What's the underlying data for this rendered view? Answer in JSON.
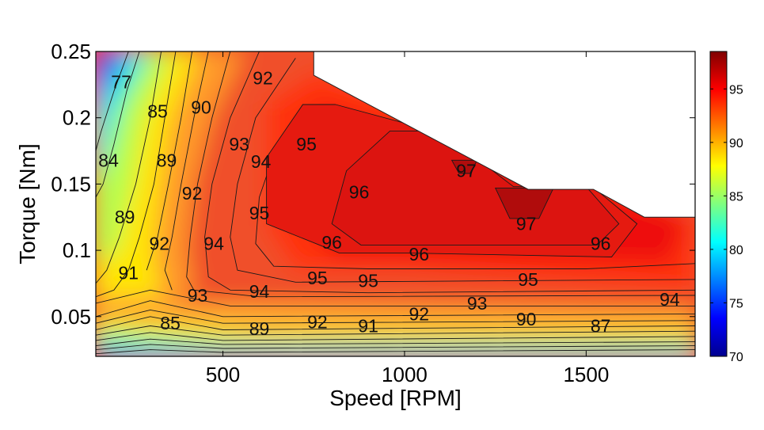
{
  "chart_data": {
    "type": "heatmap",
    "subtype": "filled-contour",
    "title": "",
    "xlabel": "Speed [RPM]",
    "ylabel": "Torque [Nm]",
    "xlim": [
      150,
      1800
    ],
    "ylim": [
      0.02,
      0.25
    ],
    "xticks": [
      500,
      1000,
      1500
    ],
    "xtick_labels": [
      "500",
      "1000",
      "1500"
    ],
    "yticks": [
      0.05,
      0.1,
      0.15,
      0.2,
      0.25
    ],
    "ytick_labels": [
      "0.05",
      "0.1",
      "0.15",
      "0.2",
      "0.25"
    ],
    "colorbar": {
      "range": [
        70,
        98.5
      ],
      "ticks": [
        70,
        75,
        80,
        85,
        90,
        95
      ],
      "tick_labels": [
        "70",
        "75",
        "80",
        "85",
        "90",
        "95"
      ],
      "colormap": "jet"
    },
    "region_boundary": [
      [
        150,
        0.02
      ],
      [
        1800,
        0.02
      ],
      [
        1800,
        0.125
      ],
      [
        1660,
        0.125
      ],
      [
        1520,
        0.146
      ],
      [
        1340,
        0.146
      ],
      [
        750,
        0.232
      ],
      [
        750,
        0.25
      ],
      [
        150,
        0.25
      ]
    ],
    "contour_labels": [
      {
        "text": "77",
        "x": 220,
        "y": 0.227
      },
      {
        "text": "85",
        "x": 320,
        "y": 0.205
      },
      {
        "text": "90",
        "x": 440,
        "y": 0.208
      },
      {
        "text": "92",
        "x": 610,
        "y": 0.23
      },
      {
        "text": "84",
        "x": 185,
        "y": 0.168
      },
      {
        "text": "89",
        "x": 345,
        "y": 0.168
      },
      {
        "text": "93",
        "x": 545,
        "y": 0.18
      },
      {
        "text": "95",
        "x": 730,
        "y": 0.18
      },
      {
        "text": "94",
        "x": 605,
        "y": 0.167
      },
      {
        "text": "92",
        "x": 415,
        "y": 0.143
      },
      {
        "text": "96",
        "x": 875,
        "y": 0.144
      },
      {
        "text": "97",
        "x": 1170,
        "y": 0.16
      },
      {
        "text": "89",
        "x": 230,
        "y": 0.125
      },
      {
        "text": "95",
        "x": 600,
        "y": 0.128
      },
      {
        "text": "97",
        "x": 1335,
        "y": 0.12
      },
      {
        "text": "92",
        "x": 325,
        "y": 0.105
      },
      {
        "text": "94",
        "x": 475,
        "y": 0.105
      },
      {
        "text": "96",
        "x": 800,
        "y": 0.106
      },
      {
        "text": "96",
        "x": 1040,
        "y": 0.097
      },
      {
        "text": "96",
        "x": 1540,
        "y": 0.105
      },
      {
        "text": "91",
        "x": 240,
        "y": 0.083
      },
      {
        "text": "95",
        "x": 760,
        "y": 0.079
      },
      {
        "text": "95",
        "x": 900,
        "y": 0.077
      },
      {
        "text": "95",
        "x": 1340,
        "y": 0.078
      },
      {
        "text": "93",
        "x": 430,
        "y": 0.066
      },
      {
        "text": "94",
        "x": 600,
        "y": 0.069
      },
      {
        "text": "93",
        "x": 1200,
        "y": 0.06
      },
      {
        "text": "94",
        "x": 1730,
        "y": 0.063
      },
      {
        "text": "92",
        "x": 1040,
        "y": 0.052
      },
      {
        "text": "90",
        "x": 1335,
        "y": 0.048
      },
      {
        "text": "85",
        "x": 355,
        "y": 0.045
      },
      {
        "text": "89",
        "x": 600,
        "y": 0.041
      },
      {
        "text": "92",
        "x": 760,
        "y": 0.046
      },
      {
        "text": "91",
        "x": 900,
        "y": 0.043
      },
      {
        "text": "87",
        "x": 1540,
        "y": 0.043
      }
    ]
  }
}
